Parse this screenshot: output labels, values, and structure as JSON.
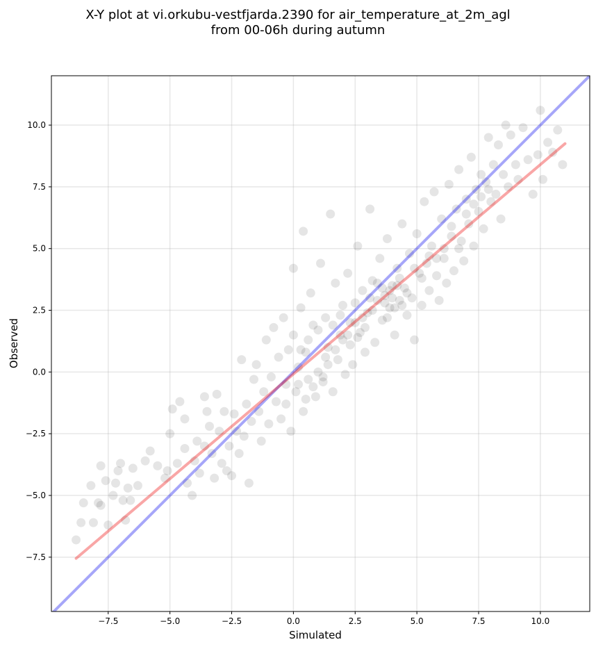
{
  "title_lines": [
    "X-Y plot at vi.orkubu-vestfjarda.2390 for air_temperature_at_2m_agl",
    "from 00-06h during autumn"
  ],
  "chart_data": {
    "type": "scatter",
    "title": "X-Y plot at vi.orkubu-vestfjarda.2390 for air_temperature_at_2m_agl from 00-06h during autumn",
    "xlabel": "Simulated",
    "ylabel": "Observed",
    "xlim": [
      -9.8,
      12.0
    ],
    "ylim": [
      -9.7,
      12.0
    ],
    "xticks": [
      -7.5,
      -5.0,
      -2.5,
      0.0,
      2.5,
      5.0,
      7.5,
      10.0
    ],
    "yticks": [
      -7.5,
      -5.0,
      -2.5,
      0.0,
      2.5,
      5.0,
      7.5,
      10.0
    ],
    "xtick_labels": [
      "−7.5",
      "−5.0",
      "−2.5",
      "0.0",
      "2.5",
      "5.0",
      "7.5",
      "10.0"
    ],
    "ytick_labels": [
      "−7.5",
      "−5.0",
      "−2.5",
      "0.0",
      "2.5",
      "5.0",
      "7.5",
      "10.0"
    ],
    "grid": true,
    "point_color": "#000000",
    "point_alpha": 0.1,
    "lines": [
      {
        "role": "one-to-one",
        "color": "#0000ee",
        "alpha": 0.35,
        "x": [
          -9.8,
          12.0
        ],
        "y": [
          -9.8,
          12.0
        ]
      },
      {
        "role": "fit",
        "color": "#ee0000",
        "alpha": 0.35,
        "x": [
          -8.8,
          11.0
        ],
        "y": [
          -7.55,
          9.25
        ]
      }
    ],
    "points": [
      [
        -8.8,
        -6.8
      ],
      [
        -8.6,
        -6.1
      ],
      [
        -8.5,
        -5.3
      ],
      [
        -8.2,
        -4.6
      ],
      [
        -8.1,
        -6.1
      ],
      [
        -7.9,
        -5.3
      ],
      [
        -7.8,
        -3.8
      ],
      [
        -7.8,
        -5.4
      ],
      [
        -7.6,
        -4.4
      ],
      [
        -7.5,
        -6.2
      ],
      [
        -7.3,
        -5.0
      ],
      [
        -7.2,
        -4.5
      ],
      [
        -7.1,
        -4.0
      ],
      [
        -7.0,
        -3.7
      ],
      [
        -6.9,
        -5.2
      ],
      [
        -6.8,
        -6.0
      ],
      [
        -6.7,
        -4.7
      ],
      [
        -6.6,
        -5.2
      ],
      [
        -6.5,
        -3.9
      ],
      [
        -6.3,
        -4.6
      ],
      [
        -6.0,
        -3.6
      ],
      [
        -5.8,
        -3.2
      ],
      [
        -5.5,
        -3.8
      ],
      [
        -5.2,
        -4.3
      ],
      [
        -5.1,
        -4.0
      ],
      [
        -5.0,
        -2.5
      ],
      [
        -4.9,
        -1.5
      ],
      [
        -4.7,
        -3.7
      ],
      [
        -4.6,
        -1.2
      ],
      [
        -4.4,
        -1.9
      ],
      [
        -4.4,
        -3.1
      ],
      [
        -4.3,
        -4.5
      ],
      [
        -4.1,
        -5.0
      ],
      [
        -4.0,
        -3.6
      ],
      [
        -3.9,
        -2.8
      ],
      [
        -3.8,
        -4.1
      ],
      [
        -3.6,
        -3.0
      ],
      [
        -3.6,
        -1.0
      ],
      [
        -3.5,
        -1.6
      ],
      [
        -3.4,
        -2.2
      ],
      [
        -3.3,
        -3.3
      ],
      [
        -3.2,
        -4.3
      ],
      [
        -3.1,
        -0.9
      ],
      [
        -3.0,
        -2.4
      ],
      [
        -2.9,
        -3.7
      ],
      [
        -2.8,
        -1.6
      ],
      [
        -2.7,
        -4.0
      ],
      [
        -2.6,
        -3.0
      ],
      [
        -2.5,
        -4.2
      ],
      [
        -2.4,
        -1.7
      ],
      [
        -2.3,
        -2.4
      ],
      [
        -2.2,
        -3.3
      ],
      [
        -2.1,
        0.5
      ],
      [
        -2.0,
        -2.6
      ],
      [
        -1.9,
        -1.3
      ],
      [
        -1.8,
        -4.5
      ],
      [
        -1.7,
        -2.0
      ],
      [
        -1.6,
        -0.3
      ],
      [
        -1.5,
        0.3
      ],
      [
        -1.4,
        -1.6
      ],
      [
        -1.3,
        -2.8
      ],
      [
        -1.2,
        -0.8
      ],
      [
        -1.1,
        1.3
      ],
      [
        -1.0,
        -2.1
      ],
      [
        -0.9,
        -0.2
      ],
      [
        -0.8,
        1.8
      ],
      [
        -0.7,
        -1.2
      ],
      [
        -0.6,
        0.6
      ],
      [
        -0.5,
        -1.9
      ],
      [
        -0.4,
        2.2
      ],
      [
        -0.3,
        -0.5
      ],
      [
        -0.2,
        0.9
      ],
      [
        -0.1,
        -2.4
      ],
      [
        0.0,
        1.5
      ],
      [
        0.0,
        4.2
      ],
      [
        0.1,
        -0.8
      ],
      [
        0.2,
        0.2
      ],
      [
        0.3,
        2.6
      ],
      [
        0.4,
        -1.6
      ],
      [
        0.4,
        5.7
      ],
      [
        0.5,
        0.8
      ],
      [
        0.6,
        -0.3
      ],
      [
        0.7,
        3.2
      ],
      [
        0.8,
        1.9
      ],
      [
        0.9,
        -1.0
      ],
      [
        1.0,
        0.0
      ],
      [
        1.1,
        4.4
      ],
      [
        1.2,
        -0.4
      ],
      [
        1.3,
        2.2
      ],
      [
        1.4,
        1.0
      ],
      [
        1.5,
        6.4
      ],
      [
        1.6,
        -0.8
      ],
      [
        1.7,
        3.6
      ],
      [
        1.8,
        0.5
      ],
      [
        1.9,
        1.5
      ],
      [
        2.0,
        2.7
      ],
      [
        2.1,
        -0.1
      ],
      [
        2.2,
        4.0
      ],
      [
        2.3,
        1.1
      ],
      [
        2.4,
        0.3
      ],
      [
        2.5,
        2.0
      ],
      [
        2.6,
        5.1
      ],
      [
        2.7,
        1.6
      ],
      [
        2.8,
        3.3
      ],
      [
        2.9,
        0.8
      ],
      [
        3.0,
        2.4
      ],
      [
        3.1,
        6.6
      ],
      [
        3.2,
        3.7
      ],
      [
        3.3,
        1.2
      ],
      [
        3.4,
        2.9
      ],
      [
        3.5,
        4.6
      ],
      [
        3.6,
        2.1
      ],
      [
        3.7,
        3.1
      ],
      [
        3.8,
        5.4
      ],
      [
        3.9,
        2.6
      ],
      [
        4.0,
        3.5
      ],
      [
        4.1,
        1.5
      ],
      [
        4.2,
        4.2
      ],
      [
        4.3,
        2.9
      ],
      [
        4.4,
        6.0
      ],
      [
        4.5,
        3.4
      ],
      [
        4.6,
        2.3
      ],
      [
        4.7,
        4.8
      ],
      [
        4.8,
        3.0
      ],
      [
        4.9,
        1.3
      ],
      [
        5.0,
        5.6
      ],
      [
        5.1,
        4.0
      ],
      [
        5.2,
        2.7
      ],
      [
        5.3,
        6.9
      ],
      [
        5.4,
        4.4
      ],
      [
        5.5,
        3.3
      ],
      [
        5.6,
        5.1
      ],
      [
        5.7,
        7.3
      ],
      [
        5.8,
        4.6
      ],
      [
        5.9,
        2.9
      ],
      [
        6.0,
        6.2
      ],
      [
        6.1,
        5.0
      ],
      [
        6.2,
        3.6
      ],
      [
        6.3,
        7.6
      ],
      [
        6.4,
        5.5
      ],
      [
        6.5,
        4.1
      ],
      [
        6.6,
        6.6
      ],
      [
        6.7,
        8.2
      ],
      [
        6.8,
        5.3
      ],
      [
        6.9,
        4.5
      ],
      [
        7.0,
        7.0
      ],
      [
        7.1,
        6.0
      ],
      [
        7.2,
        8.7
      ],
      [
        7.3,
        5.1
      ],
      [
        7.4,
        7.4
      ],
      [
        7.5,
        6.5
      ],
      [
        7.6,
        8.0
      ],
      [
        7.7,
        5.8
      ],
      [
        7.8,
        7.7
      ],
      [
        7.9,
        9.5
      ],
      [
        8.0,
        6.9
      ],
      [
        8.1,
        8.4
      ],
      [
        8.2,
        7.2
      ],
      [
        8.3,
        9.2
      ],
      [
        8.4,
        6.2
      ],
      [
        8.5,
        8.0
      ],
      [
        8.6,
        10.0
      ],
      [
        8.7,
        7.5
      ],
      [
        8.8,
        9.6
      ],
      [
        9.0,
        8.4
      ],
      [
        9.1,
        7.8
      ],
      [
        9.3,
        9.9
      ],
      [
        9.5,
        8.6
      ],
      [
        9.7,
        7.2
      ],
      [
        9.9,
        8.8
      ],
      [
        10.0,
        10.6
      ],
      [
        10.1,
        7.8
      ],
      [
        10.3,
        9.3
      ],
      [
        10.5,
        8.9
      ],
      [
        10.7,
        9.8
      ],
      [
        10.9,
        8.4
      ],
      [
        0.3,
        0.9
      ],
      [
        0.6,
        1.3
      ],
      [
        1.0,
        1.7
      ],
      [
        1.3,
        0.6
      ],
      [
        1.6,
        1.9
      ],
      [
        1.9,
        2.3
      ],
      [
        2.2,
        1.5
      ],
      [
        2.5,
        2.8
      ],
      [
        2.8,
        2.2
      ],
      [
        3.1,
        3.0
      ],
      [
        3.4,
        3.6
      ],
      [
        3.7,
        2.8
      ],
      [
        4.0,
        3.0
      ],
      [
        4.3,
        3.8
      ],
      [
        4.6,
        3.2
      ],
      [
        4.9,
        4.2
      ],
      [
        3.9,
        3.3
      ],
      [
        4.1,
        2.6
      ],
      [
        4.4,
        2.7
      ],
      [
        3.6,
        3.4
      ],
      [
        3.8,
        2.2
      ],
      [
        4.2,
        3.5
      ],
      [
        2.9,
        1.8
      ],
      [
        3.2,
        2.5
      ],
      [
        1.2,
        -0.2
      ],
      [
        1.4,
        0.3
      ],
      [
        0.8,
        -0.6
      ],
      [
        0.5,
        -1.1
      ],
      [
        0.2,
        -0.5
      ],
      [
        -0.3,
        -1.3
      ],
      [
        1.7,
        0.9
      ],
      [
        2.0,
        1.3
      ],
      [
        2.3,
        2.0
      ],
      [
        2.6,
        1.4
      ],
      [
        5.2,
        3.8
      ],
      [
        5.5,
        4.7
      ],
      [
        5.8,
        3.9
      ],
      [
        6.1,
        4.6
      ],
      [
        6.4,
        5.9
      ],
      [
        6.7,
        5.0
      ],
      [
        7.0,
        6.4
      ],
      [
        7.3,
        6.8
      ],
      [
        7.6,
        7.1
      ],
      [
        7.9,
        7.4
      ]
    ]
  }
}
